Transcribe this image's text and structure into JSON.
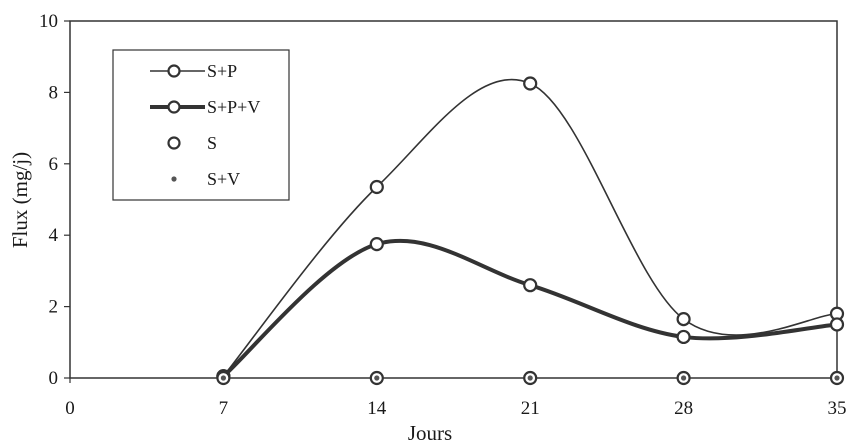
{
  "chart_data": {
    "type": "line",
    "title": "",
    "xlabel": "Jours",
    "ylabel": "Flux (mg/j)",
    "x": [
      7,
      14,
      21,
      28,
      35
    ],
    "xticks": [
      "0",
      "7",
      "14",
      "21",
      "28",
      "35"
    ],
    "yticks": [
      "0",
      "2",
      "4",
      "6",
      "8",
      "10"
    ],
    "xlim": [
      0,
      35
    ],
    "ylim": [
      0,
      10
    ],
    "grid": false,
    "legend_position": "top-left",
    "series": [
      {
        "name": "S+P",
        "values": [
          0.05,
          5.35,
          8.25,
          1.65,
          1.8
        ],
        "line": "thin",
        "marker": "open-circle",
        "color": "#333333"
      },
      {
        "name": "S+P+V",
        "values": [
          0.05,
          3.75,
          2.6,
          1.15,
          1.5
        ],
        "line": "thick",
        "marker": "open-circle",
        "color": "#333333"
      },
      {
        "name": "S",
        "values": [
          0.0,
          0.0,
          0.0,
          0.0,
          0.0
        ],
        "line": "none",
        "marker": "open-circle",
        "color": "#333333"
      },
      {
        "name": "S+V",
        "values": [
          0.0,
          0.0,
          0.0,
          0.0,
          0.0
        ],
        "line": "none",
        "marker": "small-filled-circle",
        "color": "#555555"
      }
    ]
  }
}
